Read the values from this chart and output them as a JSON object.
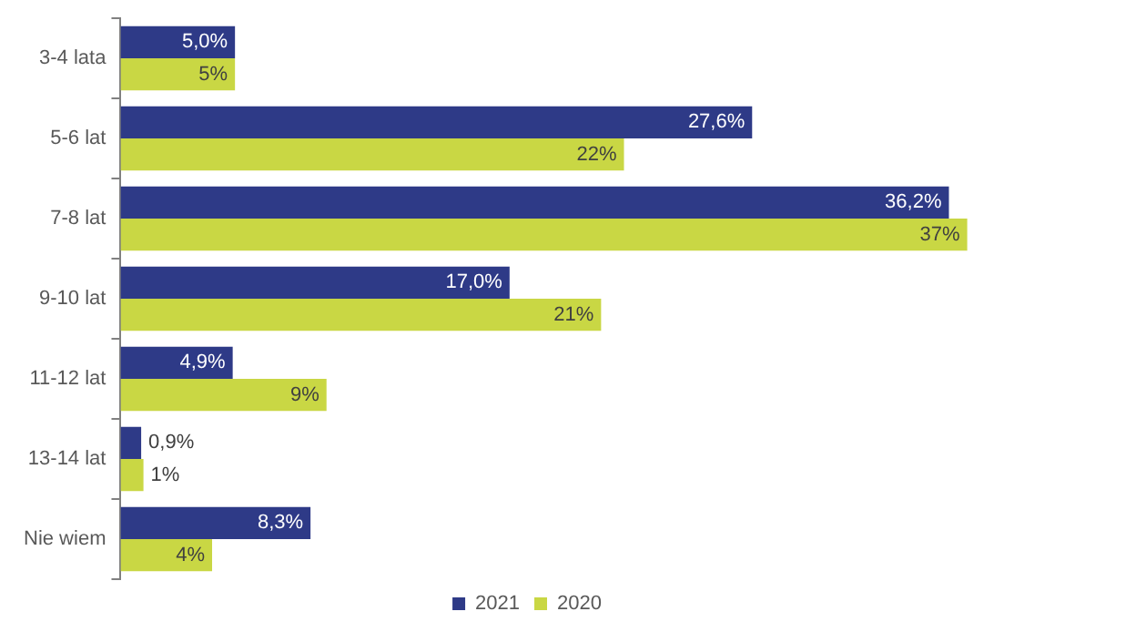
{
  "chart_data": {
    "type": "bar",
    "orientation": "horizontal",
    "categories": [
      "3-4 lata",
      "5-6 lat",
      "7-8 lat",
      "9-10 lat",
      "11-12 lat",
      "13-14 lat",
      "Nie wiem"
    ],
    "series": [
      {
        "name": "2021",
        "color": "#2e3a87",
        "values": [
          5.0,
          27.6,
          36.2,
          17.0,
          4.9,
          0.9,
          8.3
        ],
        "value_labels": [
          "5,0%",
          "27,6%",
          "36,2%",
          "17,0%",
          "4,9%",
          "0,9%",
          "8,3%"
        ]
      },
      {
        "name": "2020",
        "color": "#c9d744",
        "values": [
          5,
          22,
          37,
          21,
          9,
          1,
          4
        ],
        "value_labels": [
          "5%",
          "22%",
          "37%",
          "21%",
          "9%",
          "1%",
          "4%"
        ]
      }
    ],
    "legend": "bottom"
  }
}
